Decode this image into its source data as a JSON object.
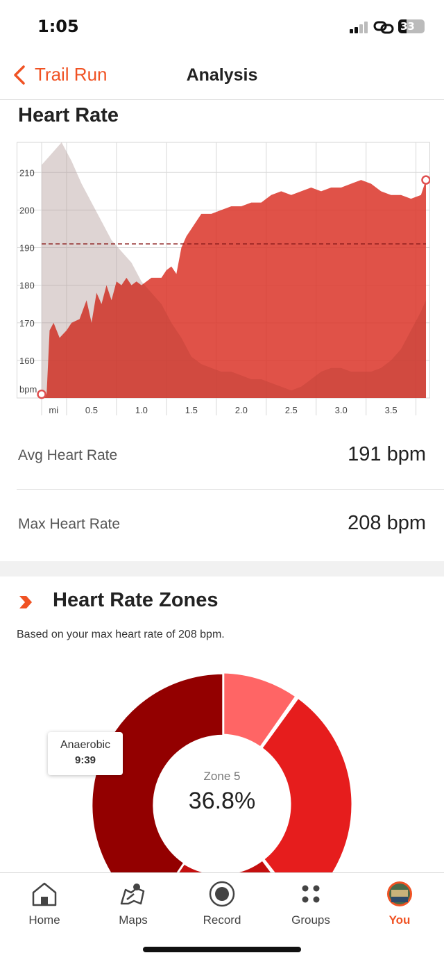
{
  "status_bar": {
    "time": "1:05",
    "battery": "33"
  },
  "nav": {
    "back_label": "Trail Run",
    "title": "Analysis"
  },
  "heart_rate": {
    "section_title": "Heart Rate",
    "avg_label": "Avg Heart Rate",
    "avg_value": "191 bpm",
    "max_label": "Max Heart Rate",
    "max_value": "208 bpm"
  },
  "chart_data": {
    "type": "area",
    "y_unit": "bpm",
    "x_unit": "mi",
    "y_ticks": [
      210,
      200,
      190,
      180,
      170,
      160
    ],
    "x_ticks": [
      "0.5",
      "1.0",
      "1.5",
      "2.0",
      "2.5",
      "3.0",
      "3.5"
    ],
    "ylim": [
      150,
      218
    ],
    "xlim": [
      0,
      3.85
    ],
    "average_line": 191,
    "grid": true,
    "series": [
      {
        "values_x": [
          0,
          0.05,
          0.08,
          0.12,
          0.18,
          0.25,
          0.3,
          0.38,
          0.45,
          0.5,
          0.55,
          0.6,
          0.65,
          0.7,
          0.75,
          0.8,
          0.85,
          0.9,
          0.95,
          1.0,
          1.05,
          1.1,
          1.2,
          1.25,
          1.3,
          1.35,
          1.4,
          1.45,
          1.5,
          1.55,
          1.6,
          1.7,
          1.8,
          1.9,
          2.0,
          2.1,
          2.2,
          2.3,
          2.4,
          2.5,
          2.6,
          2.7,
          2.8,
          2.9,
          3.0,
          3.1,
          3.2,
          3.3,
          3.4,
          3.5,
          3.6,
          3.7,
          3.8,
          3.85
        ],
        "values_y": [
          151,
          151,
          168,
          170,
          166,
          168,
          170,
          171,
          176,
          170,
          178,
          175,
          180,
          176,
          181,
          180,
          182,
          180,
          181,
          180,
          181,
          182,
          182,
          184,
          185,
          183,
          190,
          193,
          195,
          197,
          199,
          199,
          200,
          201,
          201,
          202,
          202,
          204,
          205,
          204,
          205,
          206,
          205,
          206,
          206,
          207,
          208,
          207,
          205,
          204,
          204,
          203,
          204,
          208
        ]
      },
      {
        "values_x": [
          0,
          0.1,
          0.2,
          0.3,
          0.4,
          0.5,
          0.6,
          0.7,
          0.8,
          0.9,
          1.0,
          1.1,
          1.2,
          1.3,
          1.4,
          1.5,
          1.6,
          1.7,
          1.8,
          1.9,
          2.0,
          2.1,
          2.2,
          2.3,
          2.4,
          2.5,
          2.6,
          2.7,
          2.8,
          2.9,
          3.0,
          3.1,
          3.2,
          3.3,
          3.4,
          3.5,
          3.6,
          3.7,
          3.8,
          3.85
        ],
        "values_y": [
          212,
          215,
          218,
          213,
          207,
          202,
          197,
          192,
          189,
          186,
          181,
          178,
          175,
          170,
          166,
          161,
          159,
          158,
          157,
          157,
          156,
          155,
          155,
          154,
          153,
          152,
          153,
          155,
          157,
          158,
          158,
          157,
          157,
          157,
          158,
          160,
          163,
          168,
          173,
          176
        ]
      }
    ]
  },
  "zones": {
    "section_title": "Heart Rate Zones",
    "subtitle": "Based on your max heart rate of 208 bpm.",
    "tooltip_label": "Anaerobic",
    "tooltip_value": "9:39",
    "center_label": "Zone 5",
    "center_value": "36.8%",
    "colors": [
      "#ff6565",
      "#e61d1d",
      "#c40f0f",
      "#930000"
    ]
  },
  "tabbar": {
    "items": [
      {
        "label": "Home",
        "icon": "home-icon"
      },
      {
        "label": "Maps",
        "icon": "maps-icon"
      },
      {
        "label": "Record",
        "icon": "record-icon"
      },
      {
        "label": "Groups",
        "icon": "groups-icon"
      },
      {
        "label": "You",
        "icon": "avatar-icon"
      }
    ]
  }
}
